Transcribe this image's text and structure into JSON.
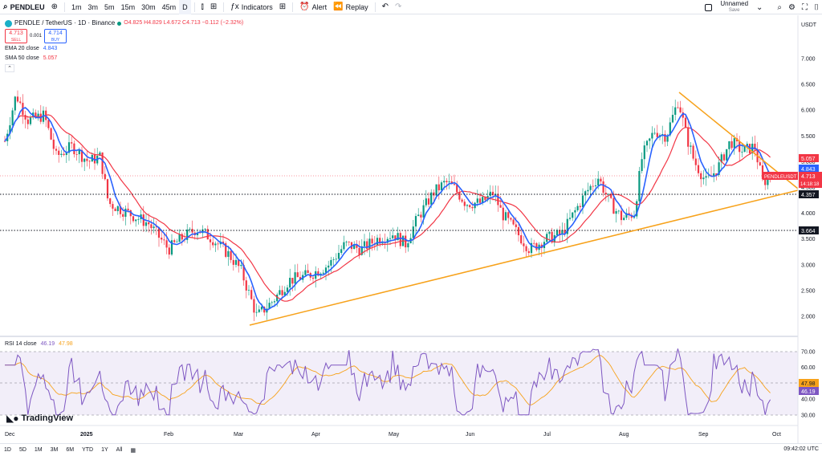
{
  "toolbar": {
    "symbol": "PENDLEU",
    "timeframes": [
      "1m",
      "3m",
      "5m",
      "15m",
      "30m",
      "45m",
      "D"
    ],
    "indicators_label": "Indicators",
    "alert_label": "Alert",
    "replay_label": "Replay",
    "layout_name": "Unnamed",
    "layout_status": "Save"
  },
  "legend": {
    "title": "PENDLE / TetherUS · 1D · Binance",
    "ohlc": "O4.825 H4.829 L4.672 C4.713 −0.112 (−2.32%)",
    "sell_price": "4.713",
    "sell_label": "SELL",
    "spread": "0.001",
    "buy_price": "4.714",
    "buy_label": "BUY",
    "ema": "EMA 20 close",
    "ema_value": "4.843",
    "sma": "SMA 50 close",
    "sma_value": "5.057"
  },
  "rsi_legend": {
    "label": "RSI 14 close",
    "value1": "46.19",
    "value2": "47.98"
  },
  "axis": {
    "currency": "USDT",
    "price_ticks": [
      "7.000",
      "6.500",
      "6.000",
      "5.500",
      "5.000",
      "4.500",
      "4.000",
      "3.500",
      "3.000",
      "2.500",
      "2.000"
    ],
    "rsi_ticks": [
      "70.00",
      "60.00",
      "50.00",
      "40.00",
      "30.00"
    ],
    "time_labels": [
      "Dec",
      "2025",
      "Feb",
      "Mar",
      "Apr",
      "May",
      "Jun",
      "Jul",
      "Aug",
      "Sep",
      "Oct"
    ]
  },
  "price_labels": {
    "sma": "5.057",
    "ema": "4.843",
    "symbol_tag": "PENDLEUSDT",
    "last": "4.713",
    "countdown": "14:18:18",
    "level1": "4.357",
    "level2": "3.664"
  },
  "bottom": {
    "ranges": [
      "1D",
      "5D",
      "1M",
      "3M",
      "6M",
      "YTD",
      "1Y",
      "All"
    ],
    "clock": "09:42:02 UTC"
  },
  "branding": "TradingView",
  "colors": {
    "up": "#089981",
    "down": "#f23645",
    "ema": "#2962ff",
    "sma": "#f23645",
    "trend": "#f7a21b",
    "rsi": "#7e57c2"
  }
}
